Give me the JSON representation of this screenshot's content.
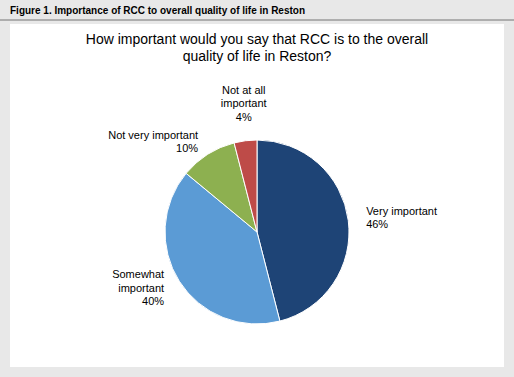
{
  "chart_data": {
    "type": "pie",
    "title": "How important would you say that RCC is to the overall\nquality of life in Reston?",
    "subtitle": "Figure 1. Importance of RCC to overall quality of life in Reston",
    "categories": [
      "Very important",
      "Somewhat\nimportant",
      "Not very important",
      "Not at all\nimportant"
    ],
    "values": [
      46,
      40,
      10,
      4
    ],
    "value_labels": [
      "46%",
      "40%",
      "10%",
      "4%"
    ],
    "data_labels": true,
    "colors": [
      "#1e4476",
      "#5b9bd5",
      "#8db050",
      "#be4b48"
    ]
  }
}
